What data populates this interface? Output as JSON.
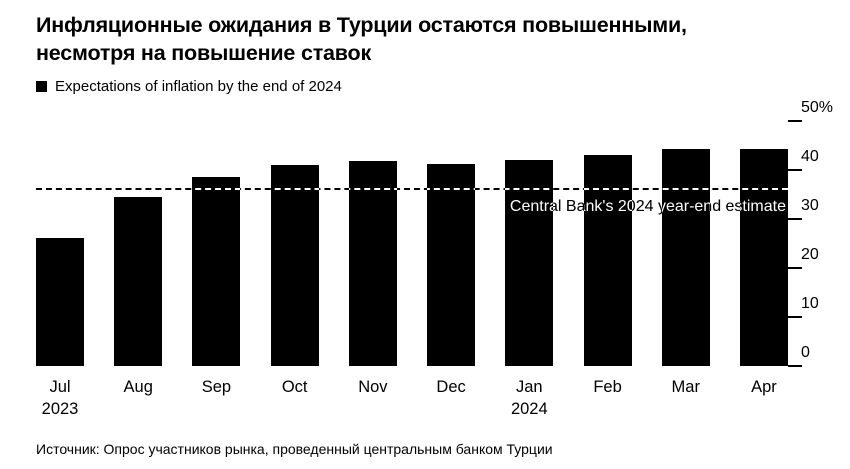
{
  "title": {
    "line1": "Инфляционные ожидания в Турции остаются повышенными,",
    "line2": "несмотря на повышение ставок"
  },
  "legend": {
    "label": "Expectations of inflation by the end of 2024",
    "swatch_color": "#000000"
  },
  "chart_data": {
    "type": "bar",
    "title": "Expectations of inflation by the end of 2024",
    "categories": [
      "Jul",
      "Aug",
      "Sep",
      "Oct",
      "Nov",
      "Dec",
      "Jan",
      "Feb",
      "Mar",
      "Apr"
    ],
    "x_sublabels": [
      "2023",
      "",
      "",
      "",
      "",
      "",
      "2024",
      "",
      "",
      ""
    ],
    "values": [
      26.2,
      34.6,
      38.6,
      41.0,
      41.9,
      41.2,
      42.0,
      43.0,
      44.2,
      44.2
    ],
    "unit": "%",
    "ylim": [
      0,
      50
    ],
    "yticks": [
      0,
      10,
      20,
      30,
      40,
      50
    ],
    "ytick_labels": [
      "0",
      "10",
      "20",
      "30",
      "40",
      "50%"
    ],
    "bar_color": "#000000",
    "grid": false,
    "y_axis_side": "right",
    "legend_position": "top-left",
    "annotation": {
      "text": "Central Bank's 2024 year-end estimate",
      "value": 36,
      "line_style": "dashed"
    }
  },
  "source": "Источник: Опрос участников рынка, проведенный центральным банком Турции"
}
